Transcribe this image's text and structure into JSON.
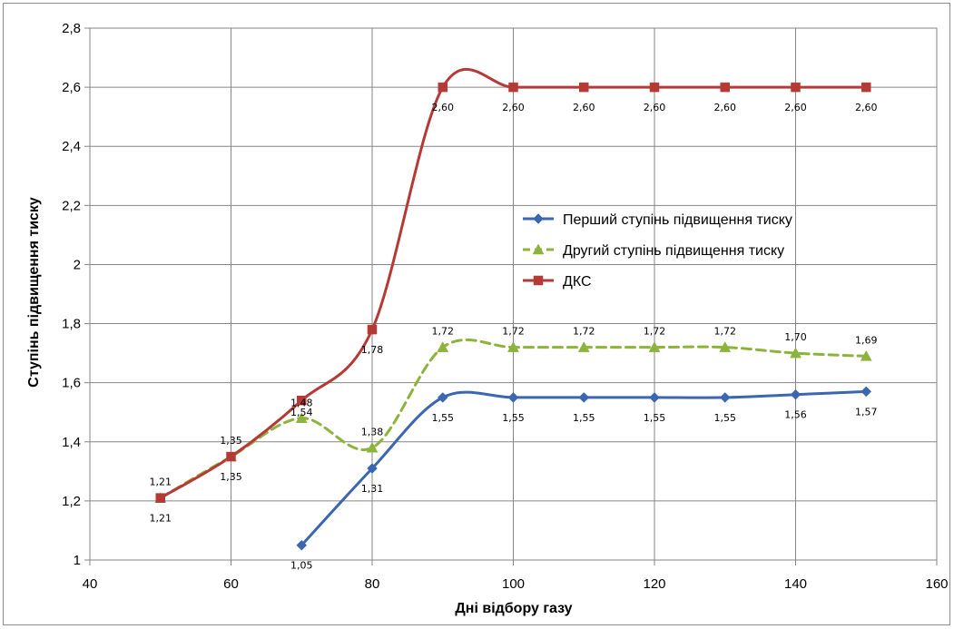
{
  "chart_data": {
    "type": "line",
    "xlabel": "Дні відбору газу",
    "ylabel": "Ступінь підвищення тиску",
    "xlim": [
      40,
      160
    ],
    "ylim": [
      1,
      2.8
    ],
    "x_ticks": [
      "40",
      "60",
      "80",
      "100",
      "120",
      "140",
      "160"
    ],
    "y_ticks": [
      "1",
      "1,2",
      "1,4",
      "1,6",
      "1,8",
      "2",
      "2,2",
      "2,4",
      "2,6",
      "2,8"
    ],
    "grid": true,
    "legend_position": "right",
    "series": [
      {
        "name": "Перший ступінь підвищення тиску",
        "color": "#3a67b0",
        "marker": "diamond",
        "dash": "solid",
        "x": [
          70,
          80,
          90,
          100,
          110,
          120,
          130,
          140,
          150
        ],
        "y": [
          1.05,
          1.31,
          1.55,
          1.55,
          1.55,
          1.55,
          1.55,
          1.56,
          1.57
        ],
        "labels": [
          "1,05",
          "1,31",
          "1,55",
          "1,55",
          "1,55",
          "1,55",
          "1,55",
          "1,56",
          "1,57"
        ]
      },
      {
        "name": "Другий ступінь підвищення тиску",
        "color": "#8cb33c",
        "marker": "triangle",
        "dash": "dashed",
        "x": [
          50,
          60,
          70,
          80,
          90,
          100,
          110,
          120,
          130,
          140,
          150
        ],
        "y": [
          1.21,
          1.35,
          1.48,
          1.38,
          1.72,
          1.72,
          1.72,
          1.72,
          1.72,
          1.7,
          1.69
        ],
        "labels": [
          "1,21",
          "1,35",
          "1,48",
          "1,38",
          "1,72",
          "1,72",
          "1,72",
          "1,72",
          "1,72",
          "1,70",
          "1,69"
        ]
      },
      {
        "name": "ДКС",
        "color": "#b53a36",
        "marker": "square",
        "dash": "solid",
        "x": [
          50,
          60,
          70,
          80,
          90,
          100,
          110,
          120,
          130,
          140,
          150
        ],
        "y": [
          1.21,
          1.35,
          1.54,
          1.78,
          2.6,
          2.6,
          2.6,
          2.6,
          2.6,
          2.6,
          2.6
        ],
        "labels": [
          "1,21",
          "1,35",
          "1,54",
          "1,78",
          "2,60",
          "2,60",
          "2,60",
          "2,60",
          "2,60",
          "2,60",
          "2,60"
        ]
      }
    ]
  }
}
